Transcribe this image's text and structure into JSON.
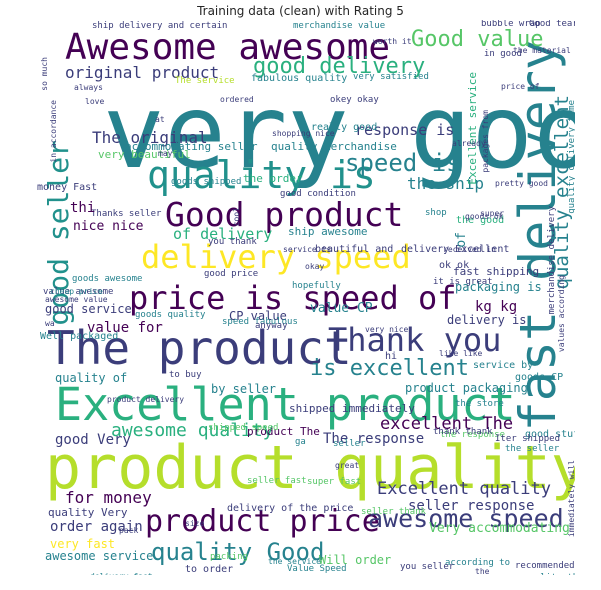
{
  "title": "Training data (clean) with Rating 5",
  "palette": {
    "purple": "#440154",
    "indigo": "#3b3d7a",
    "blue": "#33638d",
    "teal": "#26828e",
    "cyan": "#21918c",
    "green": "#2ab07f",
    "lightgreen": "#56c667",
    "lime": "#b5de2b",
    "yellow": "#fde725"
  },
  "words": [
    {
      "text": "very good",
      "color": "teal"
    },
    {
      "text": "product quality",
      "color": "lime"
    },
    {
      "text": "Excellent product",
      "color": "green"
    },
    {
      "text": "The product",
      "color": "indigo"
    },
    {
      "text": "Awesome awesome",
      "color": "purple"
    },
    {
      "text": "fast delivery",
      "color": "teal"
    },
    {
      "text": "quality is",
      "color": "cyan"
    },
    {
      "text": "price is speed of",
      "color": "purple"
    },
    {
      "text": "Good product",
      "color": "purple"
    },
    {
      "text": "delivery speed",
      "color": "yellow"
    },
    {
      "text": "Thank you",
      "color": "indigo"
    },
    {
      "text": "good seller",
      "color": "cyan"
    },
    {
      "text": "product price",
      "color": "purple"
    },
    {
      "text": "awesome speed",
      "color": "indigo"
    },
    {
      "text": "Good value",
      "color": "lightgreen"
    },
    {
      "text": "good delivery",
      "color": "green"
    },
    {
      "text": "speed is",
      "color": "teal"
    },
    {
      "text": "is excellent",
      "color": "teal"
    },
    {
      "text": "quality Good",
      "color": "teal"
    },
    {
      "text": "original product",
      "color": "indigo"
    },
    {
      "text": "quality excellent",
      "color": "teal"
    },
    {
      "text": "awesome quality",
      "color": "green"
    },
    {
      "text": "Excellent quality",
      "color": "indigo"
    },
    {
      "text": "excellent The",
      "color": "purple"
    },
    {
      "text": "The original",
      "color": "indigo"
    },
    {
      "text": "response is",
      "color": "indigo"
    },
    {
      "text": "the ship",
      "color": "teal"
    },
    {
      "text": "for money",
      "color": "purple"
    },
    {
      "text": "seller response",
      "color": "indigo"
    },
    {
      "text": "order again",
      "color": "indigo"
    },
    {
      "text": "good Very",
      "color": "indigo"
    },
    {
      "text": "value for",
      "color": "purple"
    },
    {
      "text": "The response",
      "color": "indigo"
    },
    {
      "text": "nice nice",
      "color": "purple"
    },
    {
      "text": "of delivery",
      "color": "green"
    },
    {
      "text": "good service",
      "color": "indigo"
    },
    {
      "text": "accommodating seller",
      "color": "teal"
    },
    {
      "text": "quality merchandise",
      "color": "teal"
    },
    {
      "text": "delivery is",
      "color": "indigo"
    },
    {
      "text": "kg kg",
      "color": "purple"
    },
    {
      "text": "value CP",
      "color": "teal"
    },
    {
      "text": "CP value",
      "color": "indigo"
    },
    {
      "text": "very fast",
      "color": "yellow"
    },
    {
      "text": "awesome service",
      "color": "teal"
    },
    {
      "text": "product packaging",
      "color": "teal"
    },
    {
      "text": "Very accommodating",
      "color": "lightgreen"
    },
    {
      "text": "packaging is",
      "color": "teal"
    },
    {
      "text": "Well packaged",
      "color": "teal"
    },
    {
      "text": "value awesome",
      "color": "indigo"
    },
    {
      "text": "quality of",
      "color": "teal"
    },
    {
      "text": "by seller",
      "color": "teal"
    },
    {
      "text": "product The",
      "color": "purple"
    },
    {
      "text": "quality Very",
      "color": "indigo"
    },
    {
      "text": "Will order",
      "color": "lightgreen"
    },
    {
      "text": "very beautiful",
      "color": "lightgreen"
    },
    {
      "text": "ship delivery and certain",
      "color": "indigo"
    },
    {
      "text": "merchandise value",
      "color": "teal"
    },
    {
      "text": "The service",
      "color": "lime"
    },
    {
      "text": "fabulous quality",
      "color": "teal"
    },
    {
      "text": "very satisfied",
      "color": "teal"
    },
    {
      "text": "ship awesome",
      "color": "teal"
    },
    {
      "text": "fast shipping",
      "color": "indigo"
    },
    {
      "text": "speed fabulous",
      "color": "teal"
    },
    {
      "text": "delivery of the price",
      "color": "indigo"
    },
    {
      "text": "shipped immediately",
      "color": "indigo"
    },
    {
      "text": "good condition",
      "color": "indigo"
    },
    {
      "text": "money Fast",
      "color": "indigo"
    },
    {
      "text": "goods shipped",
      "color": "teal"
    },
    {
      "text": "Thanks seller",
      "color": "indigo"
    },
    {
      "text": "beautiful and",
      "color": "indigo"
    },
    {
      "text": "delivery Excellent",
      "color": "indigo"
    },
    {
      "text": "the good",
      "color": "green"
    },
    {
      "text": "service is",
      "color": "indigo"
    },
    {
      "text": "hopefully",
      "color": "teal"
    },
    {
      "text": "super fast",
      "color": "lightgreen"
    },
    {
      "text": "seller fast",
      "color": "lightgreen"
    },
    {
      "text": "seller thank",
      "color": "lightgreen"
    },
    {
      "text": "the store",
      "color": "teal"
    },
    {
      "text": "the seller",
      "color": "teal"
    },
    {
      "text": "good stuff",
      "color": "teal"
    },
    {
      "text": "the order",
      "color": "green"
    },
    {
      "text": "really good",
      "color": "teal"
    },
    {
      "text": "okey okay",
      "color": "indigo"
    },
    {
      "text": "Good tear",
      "color": "indigo"
    },
    {
      "text": "bubble wrap",
      "color": "indigo"
    },
    {
      "text": "packing",
      "color": "lightgreen"
    },
    {
      "text": "shipped speed",
      "color": "lightgreen"
    },
    {
      "text": "the response",
      "color": "lightgreen"
    },
    {
      "text": "service by",
      "color": "teal"
    },
    {
      "text": "goods CP",
      "color": "teal"
    },
    {
      "text": "very nice",
      "color": "indigo"
    },
    {
      "text": "recommended",
      "color": "indigo"
    },
    {
      "text": "according to",
      "color": "teal"
    },
    {
      "text": "you seller",
      "color": "indigo"
    },
    {
      "text": "Value Speed",
      "color": "teal"
    },
    {
      "text": "to order",
      "color": "indigo"
    },
    {
      "text": "goods awesome",
      "color": "teal"
    },
    {
      "text": "good price",
      "color": "indigo"
    },
    {
      "text": "awesome value",
      "color": "indigo"
    },
    {
      "text": "cheap price",
      "color": "teal"
    },
    {
      "text": "goods quality",
      "color": "teal"
    },
    {
      "text": "Excellent service",
      "color": "green"
    },
    {
      "text": "quality delivery time",
      "color": "teal"
    },
    {
      "text": "merchandise delivery",
      "color": "indigo"
    },
    {
      "text": "values according",
      "color": "indigo"
    },
    {
      "text": "immediately will",
      "color": "indigo"
    },
    {
      "text": "thank thank",
      "color": "indigo"
    },
    {
      "text": "Iter shipped",
      "color": "indigo"
    },
    {
      "text": "always",
      "color": "indigo"
    },
    {
      "text": "love",
      "color": "indigo"
    },
    {
      "text": "ordered",
      "color": "indigo"
    },
    {
      "text": "shopping nice",
      "color": "indigo"
    },
    {
      "text": "packages from",
      "color": "indigo"
    },
    {
      "text": "already",
      "color": "indigo"
    },
    {
      "text": "the material",
      "color": "indigo"
    },
    {
      "text": "in good",
      "color": "indigo"
    },
    {
      "text": "worth it",
      "color": "indigo"
    },
    {
      "text": "received in",
      "color": "indigo"
    },
    {
      "text": "you thank",
      "color": "indigo"
    },
    {
      "text": "okay",
      "color": "indigo"
    },
    {
      "text": "ok ok",
      "color": "indigo"
    },
    {
      "text": "it is great",
      "color": "indigo"
    },
    {
      "text": "anyway",
      "color": "indigo"
    },
    {
      "text": "like like",
      "color": "indigo"
    },
    {
      "text": "hi",
      "color": "indigo"
    },
    {
      "text": "to buy",
      "color": "indigo"
    },
    {
      "text": "product delivery",
      "color": "indigo"
    },
    {
      "text": "price of",
      "color": "indigo"
    },
    {
      "text": "so much",
      "color": "indigo"
    },
    {
      "text": "in accordance",
      "color": "indigo"
    },
    {
      "text": "shop",
      "color": "teal"
    },
    {
      "text": "may",
      "color": "indigo"
    },
    {
      "text": "size",
      "color": "indigo"
    },
    {
      "text": "pack",
      "color": "indigo"
    },
    {
      "text": "great",
      "color": "indigo"
    },
    {
      "text": "ga",
      "color": "teal"
    },
    {
      "text": "wa",
      "color": "indigo"
    },
    {
      "text": "cool",
      "color": "indigo"
    },
    {
      "text": "the service",
      "color": "teal"
    },
    {
      "text": "delivery fast",
      "color": "teal"
    },
    {
      "text": "pretty good",
      "color": "indigo"
    },
    {
      "text": "super",
      "color": "indigo"
    },
    {
      "text": "quality the",
      "color": "teal"
    },
    {
      "text": "goods ok",
      "color": "indigo"
    },
    {
      "text": "seller",
      "color": "teal"
    },
    {
      "text": "the",
      "color": "indigo"
    },
    {
      "text": "of",
      "color": "teal"
    },
    {
      "text": "thi",
      "color": "purple"
    },
    {
      "text": "at",
      "color": "indigo"
    }
  ]
}
